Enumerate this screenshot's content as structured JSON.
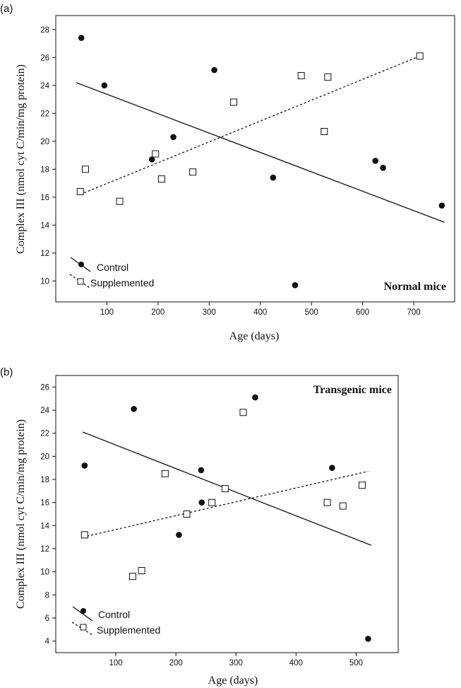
{
  "chart_data": [
    {
      "type": "scatter",
      "panel_label": "(a)",
      "annotation": "Normal mice",
      "xlabel": "Age (days)",
      "ylabel": "Complex III (nmol cyt C/min/mg protein)",
      "xlim": [
        0,
        780
      ],
      "ylim": [
        8.5,
        29
      ],
      "xticks": [
        100,
        200,
        300,
        400,
        500,
        600,
        700
      ],
      "yticks": [
        10,
        12,
        14,
        16,
        18,
        20,
        22,
        24,
        26,
        28
      ],
      "legend": {
        "placement": "bottom-left",
        "entries": [
          "Control",
          "Supplemented"
        ]
      },
      "series": [
        {
          "name": "Control",
          "marker": "filled-circle",
          "points": [
            [
              50,
              27.4
            ],
            [
              95,
              24.0
            ],
            [
              188,
              18.7
            ],
            [
              230,
              20.3
            ],
            [
              310,
              25.1
            ],
            [
              425,
              17.4
            ],
            [
              468,
              9.7
            ],
            [
              625,
              18.6
            ],
            [
              640,
              18.1
            ],
            [
              755,
              15.4
            ]
          ],
          "fit": [
            [
              40,
              24.2
            ],
            [
              760,
              14.2
            ]
          ],
          "fit_style": "solid"
        },
        {
          "name": "Supplemented",
          "marker": "open-square",
          "points": [
            [
              48,
              16.4
            ],
            [
              58,
              18.0
            ],
            [
              125,
              15.7
            ],
            [
              195,
              19.1
            ],
            [
              207,
              17.3
            ],
            [
              268,
              17.8
            ],
            [
              348,
              22.8
            ],
            [
              480,
              24.7
            ],
            [
              525,
              20.7
            ],
            [
              532,
              24.6
            ],
            [
              712,
              26.1
            ]
          ],
          "fit": [
            [
              48,
              16.2
            ],
            [
              712,
              26.1
            ]
          ],
          "fit_style": "dashed"
        }
      ]
    },
    {
      "type": "scatter",
      "panel_label": "(b)",
      "annotation": "Transgenic mice",
      "xlabel": "Age (days)",
      "ylabel": "Complex III (nmol cyt C/min/mg protein)",
      "xlim": [
        0,
        570
      ],
      "ylim": [
        3,
        27
      ],
      "xticks": [
        100,
        200,
        300,
        400,
        500
      ],
      "yticks": [
        4,
        6,
        8,
        10,
        12,
        14,
        16,
        18,
        20,
        22,
        24,
        26
      ],
      "legend": {
        "placement": "bottom-left",
        "entries": [
          "Control",
          "Supplemented"
        ]
      },
      "series": [
        {
          "name": "Control",
          "marker": "filled-circle",
          "points": [
            [
              48,
              19.2
            ],
            [
              130,
              24.1
            ],
            [
              205,
              13.2
            ],
            [
              242,
              18.8
            ],
            [
              243,
              16.0
            ],
            [
              332,
              25.1
            ],
            [
              460,
              19.0
            ],
            [
              520,
              4.2
            ]
          ],
          "fit": [
            [
              45,
              22.1
            ],
            [
              525,
              12.3
            ]
          ],
          "fit_style": "solid"
        },
        {
          "name": "Supplemented",
          "marker": "open-square",
          "points": [
            [
              48,
              13.2
            ],
            [
              128,
              9.6
            ],
            [
              143,
              10.1
            ],
            [
              182,
              18.5
            ],
            [
              218,
              15.0
            ],
            [
              260,
              16.0
            ],
            [
              282,
              17.2
            ],
            [
              312,
              23.8
            ],
            [
              452,
              16.0
            ],
            [
              478,
              15.7
            ],
            [
              510,
              17.5
            ]
          ],
          "fit": [
            [
              45,
              13.0
            ],
            [
              520,
              18.7
            ]
          ],
          "fit_style": "dashed"
        }
      ]
    }
  ]
}
